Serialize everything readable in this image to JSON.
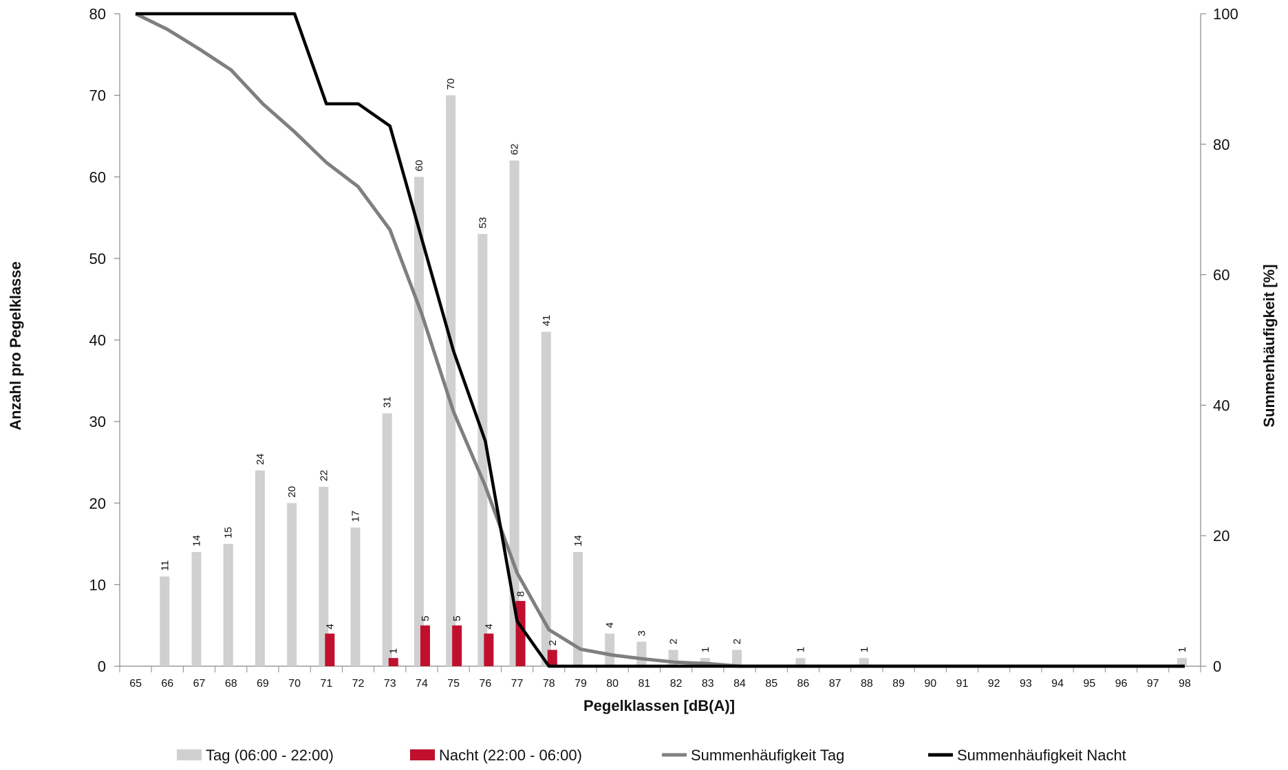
{
  "chart_data": {
    "type": "bar",
    "categories": [
      "65",
      "66",
      "67",
      "68",
      "69",
      "70",
      "71",
      "72",
      "73",
      "74",
      "75",
      "76",
      "77",
      "78",
      "79",
      "80",
      "81",
      "82",
      "83",
      "84",
      "85",
      "86",
      "87",
      "88",
      "89",
      "90",
      "91",
      "92",
      "93",
      "94",
      "95",
      "96",
      "97",
      "98"
    ],
    "xlabel": "Pegelklassen [dB(A)]",
    "ylabel": "Anzahl pro Pegelklasse",
    "y2label": "Summenhäufigkeit [%]",
    "ylim": [
      0,
      80
    ],
    "y2lim": [
      0,
      100
    ],
    "yticks": [
      0,
      10,
      20,
      30,
      40,
      50,
      60,
      70,
      80
    ],
    "y2ticks": [
      0,
      20,
      40,
      60,
      80,
      100
    ],
    "grid": false,
    "legend_position": "bottom",
    "colors": {
      "tag": "#d0d0d0",
      "nacht": "#c0102e",
      "sum_tag": "#7f7f7f",
      "sum_nacht": "#000000"
    },
    "bar_series": [
      {
        "name": "Tag (06:00 - 22:00)",
        "values": [
          0,
          11,
          14,
          15,
          24,
          20,
          22,
          17,
          31,
          60,
          70,
          53,
          62,
          41,
          14,
          4,
          3,
          2,
          1,
          2,
          0,
          1,
          0,
          1,
          0,
          0,
          0,
          0,
          0,
          0,
          0,
          0,
          0,
          1
        ]
      },
      {
        "name": "Nacht (22:00 - 06:00)",
        "values": [
          0,
          0,
          0,
          0,
          0,
          0,
          4,
          0,
          1,
          5,
          5,
          4,
          8,
          2,
          0,
          0,
          0,
          0,
          0,
          0,
          0,
          0,
          0,
          0,
          0,
          0,
          0,
          0,
          0,
          0,
          0,
          0,
          0,
          0
        ]
      }
    ],
    "line_series": [
      {
        "name": "Summenhäufigkeit Tag",
        "axis": "right",
        "values": [
          100,
          97.6,
          94.6,
          91.4,
          86.2,
          81.9,
          77.2,
          73.5,
          66.9,
          54.0,
          39.0,
          27.6,
          14.3,
          5.6,
          2.6,
          1.7,
          1.1,
          0.6,
          0.4,
          0.0,
          0.0,
          0.0,
          0.0,
          0.0,
          0.0,
          0.0,
          0.0,
          0.0,
          0.0,
          0.0,
          0.0,
          0.0,
          0.0,
          0.0
        ]
      },
      {
        "name": "Summenhäufigkeit Nacht",
        "axis": "right",
        "values": [
          100,
          100,
          100,
          100,
          100,
          100,
          86.2,
          86.2,
          82.8,
          65.5,
          48.3,
          34.5,
          6.9,
          0,
          0,
          0,
          0,
          0,
          0,
          0,
          0,
          0,
          0,
          0,
          0,
          0,
          0,
          0,
          0,
          0,
          0,
          0,
          0,
          0
        ]
      }
    ]
  }
}
